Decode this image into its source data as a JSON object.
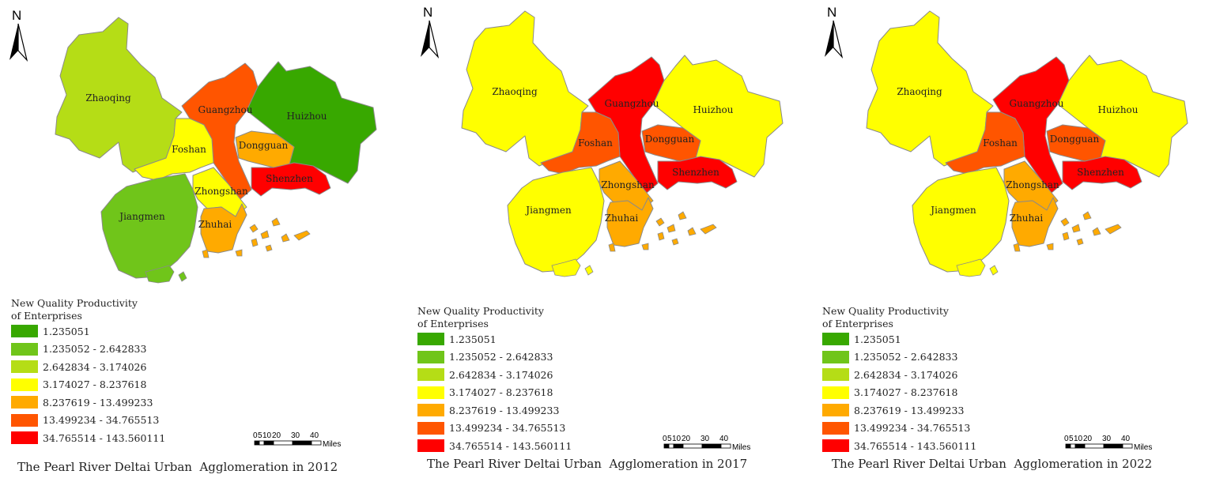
{
  "legend": {
    "title_line1": "New Quality Productivity",
    "title_line2": "of Enterprises",
    "classes": [
      {
        "label": "1.235051",
        "color": "#38a800"
      },
      {
        "label": "1.235052 - 2.642833",
        "color": "#70c51a"
      },
      {
        "label": "2.642834 - 3.174026",
        "color": "#b5dd16"
      },
      {
        "label": "3.174027 - 8.237618",
        "color": "#ffff00"
      },
      {
        "label": "8.237619 - 13.499233",
        "color": "#ffaa00"
      },
      {
        "label": "13.499234 - 34.765513",
        "color": "#ff5500"
      },
      {
        "label": "34.765514 - 143.560111",
        "color": "#ff0000"
      }
    ]
  },
  "north_label": "N",
  "scale": {
    "ticks": [
      "0",
      "5",
      "10",
      "20",
      "30",
      "40"
    ],
    "unit": "Miles"
  },
  "cities": [
    "Zhaoqing",
    "Guangzhou",
    "Huizhou",
    "Foshan",
    "Dongguan",
    "Shenzhen",
    "Zhongshan",
    "Jiangmen",
    "Zhuhai"
  ],
  "maps": [
    {
      "caption": "The Pearl River Deltai Urban  Agglomeration in 2012",
      "city_class": {
        "Zhaoqing": 2,
        "Guangzhou": 5,
        "Huizhou": 0,
        "Foshan": 3,
        "Dongguan": 4,
        "Shenzhen": 6,
        "Zhongshan": 3,
        "Jiangmen": 1,
        "Zhuhai": 4
      }
    },
    {
      "caption": "The Pearl River Deltai Urban  Agglomeration in 2017",
      "city_class": {
        "Zhaoqing": 3,
        "Guangzhou": 6,
        "Huizhou": 3,
        "Foshan": 5,
        "Dongguan": 5,
        "Shenzhen": 6,
        "Zhongshan": 4,
        "Jiangmen": 3,
        "Zhuhai": 4
      }
    },
    {
      "caption": "The Pearl River Deltai Urban  Agglomeration in 2022",
      "city_class": {
        "Zhaoqing": 3,
        "Guangzhou": 6,
        "Huizhou": 3,
        "Foshan": 5,
        "Dongguan": 5,
        "Shenzhen": 6,
        "Zhongshan": 4,
        "Jiangmen": 3,
        "Zhuhai": 4
      }
    }
  ]
}
